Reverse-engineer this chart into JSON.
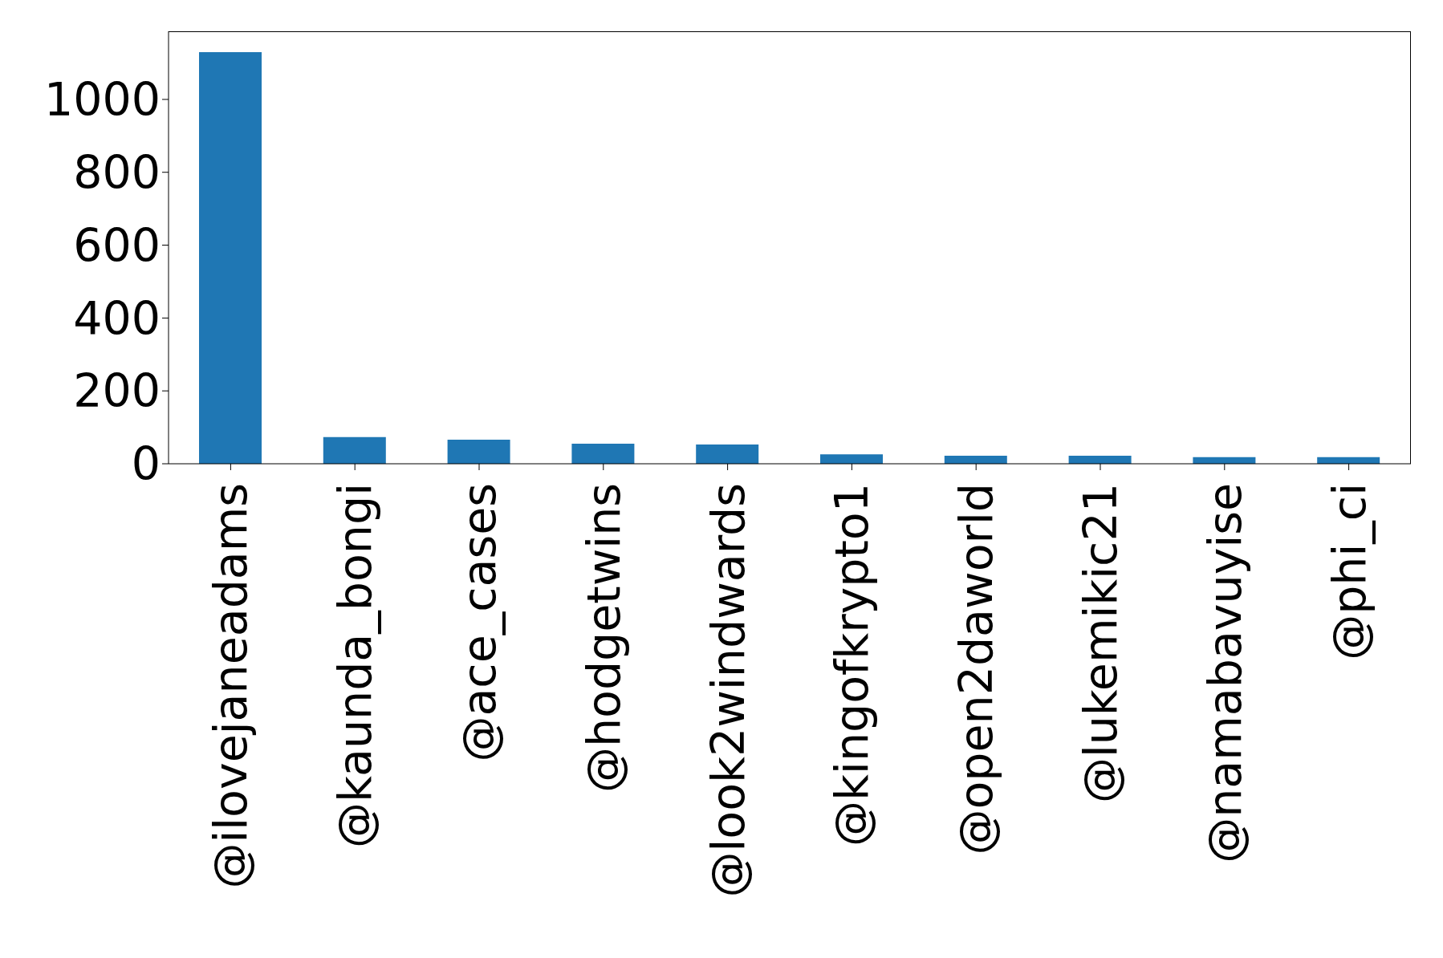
{
  "chart_data": {
    "type": "bar",
    "categories": [
      "@ilovejaneadams",
      "@kaunda_bongi",
      "@ace_cases",
      "@hodgetwins",
      "@look2windwards",
      "@kingofkrypto1",
      "@open2daworld",
      "@lukemikic21",
      "@namabavuyise",
      "@phi_ci"
    ],
    "values": [
      1130,
      73,
      66,
      55,
      53,
      26,
      22,
      22,
      18,
      18
    ],
    "color": "#1f77b4",
    "ylim": [
      0,
      1187
    ],
    "yticks": [
      0,
      200,
      400,
      600,
      800,
      1000
    ],
    "grid": false
  }
}
